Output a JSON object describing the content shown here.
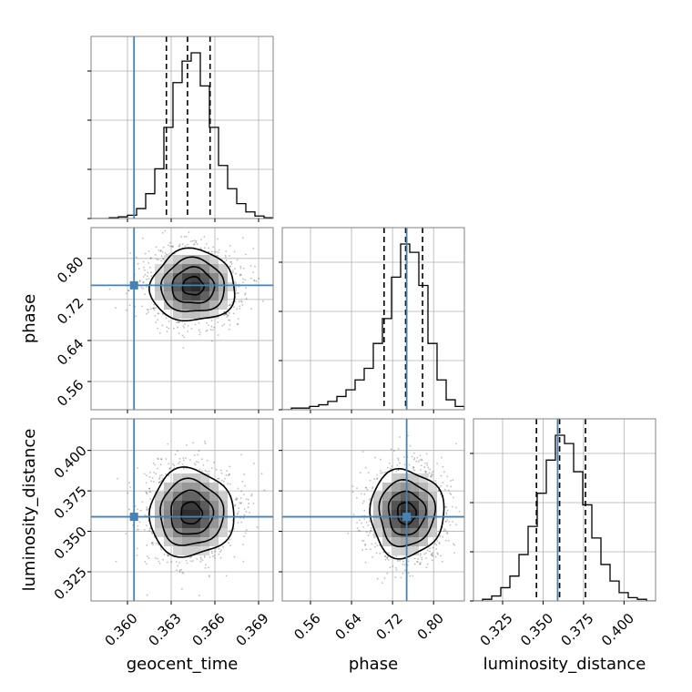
{
  "chart_data": {
    "type": "corner",
    "parameters": [
      {
        "name": "geocent_time",
        "xlabel": "geocent_time",
        "ylabel": "",
        "range": [
          0.3575,
          0.37
        ],
        "ticks": [
          0.36,
          0.363,
          0.366,
          0.369
        ],
        "tick_labels": [
          "0.360",
          "0.363",
          "0.366",
          "0.369"
        ],
        "truth": 0.36045,
        "quantiles": [
          0.36267,
          0.36412,
          0.36567
        ]
      },
      {
        "name": "phase",
        "xlabel": "phase",
        "ylabel": "phase",
        "range": [
          0.505,
          0.86
        ],
        "ticks": [
          0.56,
          0.64,
          0.72,
          0.8
        ],
        "tick_labels": [
          "0.56",
          "0.64",
          "0.72",
          "0.80"
        ],
        "truth": 0.7475,
        "quantiles": [
          0.7035,
          0.7455,
          0.7785
        ]
      },
      {
        "name": "luminosity_distance",
        "xlabel": "luminosity_distance",
        "ylabel": "luminosity_distance",
        "range": [
          0.307,
          0.4195
        ],
        "ticks": [
          0.325,
          0.35,
          0.375,
          0.4
        ],
        "tick_labels": [
          "0.325",
          "0.350",
          "0.375",
          "0.400"
        ],
        "truth": 0.359,
        "quantiles": [
          0.3459,
          0.3602,
          0.3762
        ]
      }
    ],
    "histograms": [
      {
        "param": "geocent_time",
        "bin_edges": [
          0.3575,
          0.358125,
          0.35875,
          0.359375,
          0.36,
          0.360625,
          0.36125,
          0.361875,
          0.3625,
          0.363125,
          0.36375,
          0.364375,
          0.365,
          0.365625,
          0.36625,
          0.366875,
          0.3675,
          0.368125,
          0.36875,
          0.369375,
          0.37
        ],
        "counts": [
          0,
          0,
          0.5,
          1,
          2,
          6,
          15,
          30,
          55,
          82,
          95,
          100,
          80,
          55,
          32,
          18,
          9,
          4,
          1.5,
          0.5
        ]
      },
      {
        "param": "phase",
        "bin_edges": [
          0.505,
          0.52275,
          0.5405,
          0.55825,
          0.576,
          0.59375,
          0.6115,
          0.62925,
          0.647,
          0.66475,
          0.6825,
          0.70025,
          0.718,
          0.73575,
          0.7535,
          0.77125,
          0.789,
          0.80675,
          0.8245,
          0.84225,
          0.86
        ],
        "counts": [
          0,
          1,
          1,
          2,
          3,
          5,
          8,
          12,
          18,
          25,
          40,
          55,
          80,
          100,
          95,
          75,
          40,
          18,
          6,
          2
        ]
      },
      {
        "param": "luminosity_distance",
        "bin_edges": [
          0.307,
          0.312625,
          0.31825,
          0.323875,
          0.3295,
          0.335125,
          0.34075,
          0.346375,
          0.352,
          0.357625,
          0.36325,
          0.368875,
          0.3745,
          0.380125,
          0.38575,
          0.391375,
          0.397,
          0.402625,
          0.40825,
          0.413875,
          0.4195
        ],
        "counts": [
          0,
          1,
          3,
          8,
          15,
          28,
          45,
          65,
          85,
          100,
          95,
          78,
          58,
          38,
          22,
          12,
          5,
          2,
          1,
          0
        ]
      }
    ],
    "joint_2d": [
      {
        "x": "geocent_time",
        "y": "phase",
        "center": [
          0.3645,
          0.746
        ],
        "sigma": [
          0.00145,
          0.035
        ],
        "contour_levels_sigma": [
          0.5,
          1.0,
          1.5,
          2.0
        ]
      },
      {
        "x": "geocent_time",
        "y": "luminosity_distance",
        "center": [
          0.36437,
          0.3612
        ],
        "sigma": [
          0.00145,
          0.0135
        ],
        "contour_levels_sigma": [
          0.5,
          1.0,
          1.5,
          2.0
        ]
      },
      {
        "x": "phase",
        "y": "luminosity_distance",
        "center": [
          0.747,
          0.3612
        ],
        "sigma": [
          0.036,
          0.0135
        ],
        "contour_levels_sigma": [
          0.5,
          1.0,
          1.5,
          2.0
        ]
      }
    ],
    "truth_color": "#4682b4",
    "hist_color": "#000000",
    "grid": true
  }
}
